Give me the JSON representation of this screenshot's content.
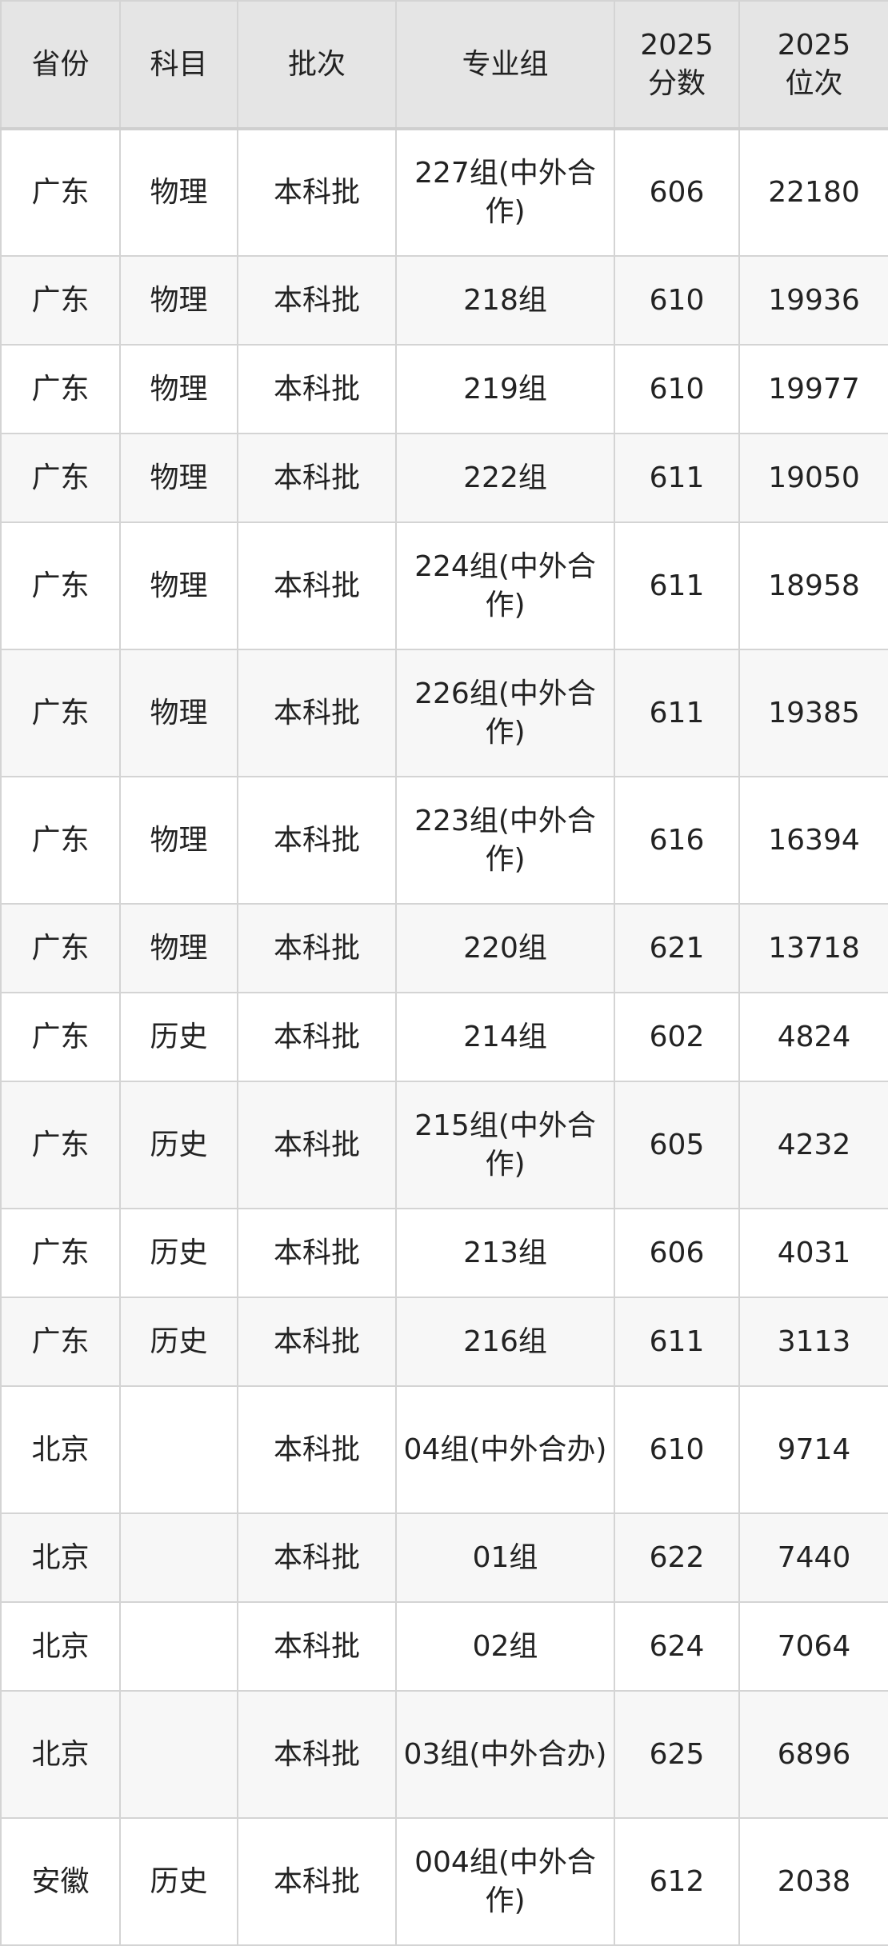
{
  "headers": [
    "省份",
    "科目",
    "批次",
    "专业组",
    "2025\n分数",
    "2025\n位次"
  ],
  "rows": [
    {
      "province": "广东",
      "subject": "物理",
      "batch": "本科批",
      "group": "227组(中外合作)",
      "score": "606",
      "rank": "22180"
    },
    {
      "province": "广东",
      "subject": "物理",
      "batch": "本科批",
      "group": "218组",
      "score": "610",
      "rank": "19936"
    },
    {
      "province": "广东",
      "subject": "物理",
      "batch": "本科批",
      "group": "219组",
      "score": "610",
      "rank": "19977"
    },
    {
      "province": "广东",
      "subject": "物理",
      "batch": "本科批",
      "group": "222组",
      "score": "611",
      "rank": "19050"
    },
    {
      "province": "广东",
      "subject": "物理",
      "batch": "本科批",
      "group": "224组(中外合作)",
      "score": "611",
      "rank": "18958"
    },
    {
      "province": "广东",
      "subject": "物理",
      "batch": "本科批",
      "group": "226组(中外合作)",
      "score": "611",
      "rank": "19385"
    },
    {
      "province": "广东",
      "subject": "物理",
      "batch": "本科批",
      "group": "223组(中外合作)",
      "score": "616",
      "rank": "16394"
    },
    {
      "province": "广东",
      "subject": "物理",
      "batch": "本科批",
      "group": "220组",
      "score": "621",
      "rank": "13718"
    },
    {
      "province": "广东",
      "subject": "历史",
      "batch": "本科批",
      "group": "214组",
      "score": "602",
      "rank": "4824"
    },
    {
      "province": "广东",
      "subject": "历史",
      "batch": "本科批",
      "group": "215组(中外合作)",
      "score": "605",
      "rank": "4232"
    },
    {
      "province": "广东",
      "subject": "历史",
      "batch": "本科批",
      "group": "213组",
      "score": "606",
      "rank": "4031"
    },
    {
      "province": "广东",
      "subject": "历史",
      "batch": "本科批",
      "group": "216组",
      "score": "611",
      "rank": "3113"
    },
    {
      "province": "北京",
      "subject": "",
      "batch": "本科批",
      "group": "04组(中外合办)",
      "score": "610",
      "rank": "9714"
    },
    {
      "province": "北京",
      "subject": "",
      "batch": "本科批",
      "group": "01组",
      "score": "622",
      "rank": "7440"
    },
    {
      "province": "北京",
      "subject": "",
      "batch": "本科批",
      "group": "02组",
      "score": "624",
      "rank": "7064"
    },
    {
      "province": "北京",
      "subject": "",
      "batch": "本科批",
      "group": "03组(中外合办)",
      "score": "625",
      "rank": "6896"
    },
    {
      "province": "安徽",
      "subject": "历史",
      "batch": "本科批",
      "group": "004组(中外合作)",
      "score": "612",
      "rank": "2038"
    }
  ]
}
